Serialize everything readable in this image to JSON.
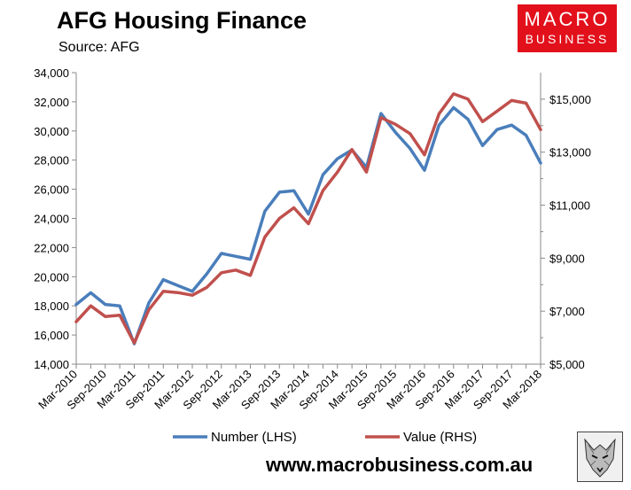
{
  "header": {
    "title": "AFG Housing Finance",
    "source": "Source: AFG"
  },
  "logo": {
    "line1": "MACRO",
    "line2": "BUSINESS",
    "color": "#e2101b"
  },
  "footer": {
    "website": "www.macrobusiness.com.au"
  },
  "chart_data": {
    "type": "line",
    "title": "AFG Housing Finance",
    "x": [
      "Mar-2010",
      "Jun-2010",
      "Sep-2010",
      "Dec-2010",
      "Mar-2011",
      "Jun-2011",
      "Sep-2011",
      "Dec-2011",
      "Mar-2012",
      "Jun-2012",
      "Sep-2012",
      "Dec-2012",
      "Mar-2013",
      "Jun-2013",
      "Sep-2013",
      "Dec-2013",
      "Mar-2014",
      "Jun-2014",
      "Sep-2014",
      "Dec-2014",
      "Mar-2015",
      "Jun-2015",
      "Sep-2015",
      "Dec-2015",
      "Mar-2016",
      "Jun-2016",
      "Sep-2016",
      "Dec-2016",
      "Mar-2017",
      "Jun-2017",
      "Sep-2017",
      "Dec-2017",
      "Mar-2018"
    ],
    "x_tick_labels": [
      "Mar-2010",
      "Sep-2010",
      "Mar-2011",
      "Sep-2011",
      "Mar-2012",
      "Sep-2012",
      "Mar-2013",
      "Sep-2013",
      "Mar-2014",
      "Sep-2014",
      "Mar-2015",
      "Sep-2015",
      "Mar-2016",
      "Sep-2016",
      "Mar-2017",
      "Sep-2017",
      "Mar-2018"
    ],
    "y_left": {
      "ylim": [
        14000,
        34000
      ],
      "ticks": [
        "14,000",
        "16,000",
        "18,000",
        "20,000",
        "22,000",
        "24,000",
        "26,000",
        "28,000",
        "30,000",
        "32,000",
        "34,000"
      ]
    },
    "y_right": {
      "ylim": [
        5000,
        16000
      ],
      "ticks": [
        "$5,000",
        "$7,000",
        "$9,000",
        "$11,000",
        "$13,000",
        "$15,000"
      ]
    },
    "grid": false,
    "legend_position": "bottom",
    "series": [
      {
        "name": "Number (LHS)",
        "axis": "left",
        "color": "#4a7ebb",
        "values": [
          18100,
          18900,
          18100,
          18000,
          15400,
          18200,
          19800,
          19400,
          19000,
          20200,
          21600,
          21400,
          21200,
          24500,
          25800,
          25900,
          24300,
          27000,
          28100,
          28700,
          27500,
          31200,
          29900,
          28800,
          27300,
          30400,
          31600,
          30800,
          29000,
          30100,
          30400,
          29700,
          27800
        ]
      },
      {
        "name": "Value (RHS)",
        "axis": "right",
        "color": "#c0504d",
        "values": [
          6600,
          7200,
          6800,
          6850,
          5800,
          7050,
          7750,
          7700,
          7600,
          7900,
          8450,
          8550,
          8350,
          9800,
          10500,
          10900,
          10300,
          11550,
          12250,
          13100,
          12250,
          14300,
          14050,
          13700,
          12900,
          14450,
          15200,
          15000,
          14150,
          14550,
          14950,
          14850,
          13850
        ]
      }
    ]
  }
}
